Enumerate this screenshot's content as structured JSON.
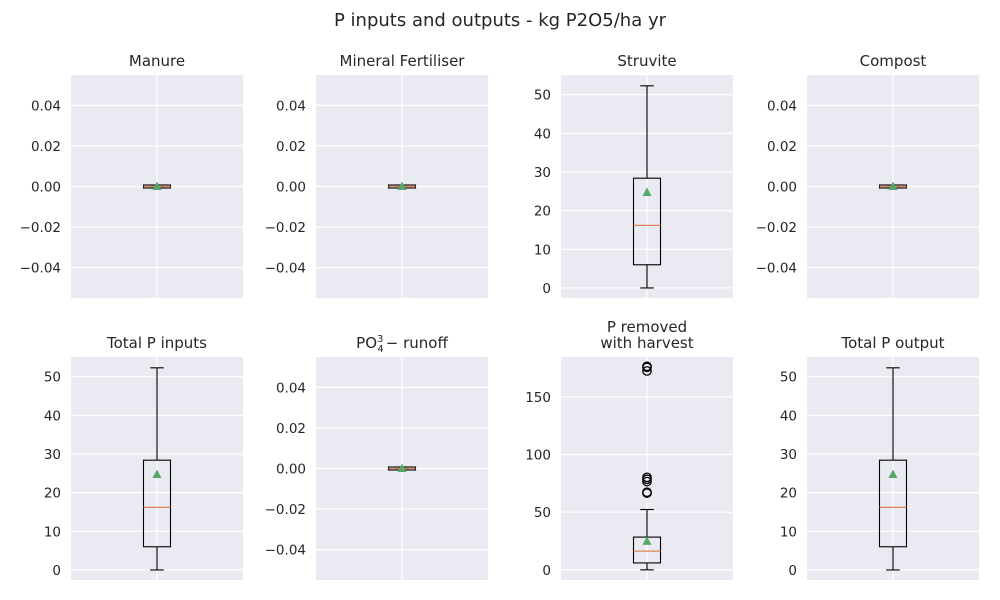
{
  "suptitle": "P inputs and outputs - kg P2O5/ha yr",
  "colors": {
    "axes_background": "#eaeaf2",
    "grid": "#ffffff",
    "box": "#000000",
    "median": "#dd8452",
    "mean_marker": "#55a868"
  },
  "chart_data": [
    {
      "type": "box",
      "title": "Manure",
      "ylim": [
        -0.055,
        0.055
      ],
      "yticks": [
        -0.04,
        -0.02,
        0.0,
        0.02,
        0.04
      ],
      "ytick_labels": [
        "−0.04",
        "−0.02",
        "0.00",
        "0.02",
        "0.04"
      ],
      "grid": true,
      "stats": {
        "whislo": 0,
        "q1": 0,
        "median": 0,
        "q3": 0,
        "whishi": 0,
        "mean": 0,
        "fliers": []
      }
    },
    {
      "type": "box",
      "title": "Mineral Fertiliser",
      "ylim": [
        -0.055,
        0.055
      ],
      "yticks": [
        -0.04,
        -0.02,
        0.0,
        0.02,
        0.04
      ],
      "ytick_labels": [
        "−0.04",
        "−0.02",
        "0.00",
        "0.02",
        "0.04"
      ],
      "grid": true,
      "stats": {
        "whislo": 0,
        "q1": 0,
        "median": 0,
        "q3": 0,
        "whishi": 0,
        "mean": 0,
        "fliers": []
      }
    },
    {
      "type": "box",
      "title": "Struvite",
      "ylim": [
        -2.6,
        55.1
      ],
      "yticks": [
        0,
        10,
        20,
        30,
        40,
        50
      ],
      "ytick_labels": [
        "0",
        "10",
        "20",
        "30",
        "40",
        "50"
      ],
      "grid": true,
      "stats": {
        "whislo": 0,
        "q1": 6,
        "median": 16.2,
        "q3": 28.4,
        "whishi": 52.3,
        "mean": 24.7,
        "fliers": []
      }
    },
    {
      "type": "box",
      "title": "Compost",
      "ylim": [
        -0.055,
        0.055
      ],
      "yticks": [
        -0.04,
        -0.02,
        0.0,
        0.02,
        0.04
      ],
      "ytick_labels": [
        "−0.04",
        "−0.02",
        "0.00",
        "0.02",
        "0.04"
      ],
      "grid": true,
      "stats": {
        "whislo": 0,
        "q1": 0,
        "median": 0,
        "q3": 0,
        "whishi": 0,
        "mean": 0,
        "fliers": []
      }
    },
    {
      "type": "box",
      "title": "Total P inputs",
      "ylim": [
        -2.6,
        55.1
      ],
      "yticks": [
        0,
        10,
        20,
        30,
        40,
        50
      ],
      "ytick_labels": [
        "0",
        "10",
        "20",
        "30",
        "40",
        "50"
      ],
      "grid": true,
      "stats": {
        "whislo": 0,
        "q1": 6,
        "median": 16.2,
        "q3": 28.4,
        "whishi": 52.3,
        "mean": 24.7,
        "fliers": []
      }
    },
    {
      "type": "box",
      "title": "PO",
      "title_sup": "3",
      "title_sub": "4",
      "title_rest": "−  runoff",
      "ylim": [
        -0.055,
        0.055
      ],
      "yticks": [
        -0.04,
        -0.02,
        0.0,
        0.02,
        0.04
      ],
      "ytick_labels": [
        "−0.04",
        "−0.02",
        "0.00",
        "0.02",
        "0.04"
      ],
      "grid": true,
      "stats": {
        "whislo": 0,
        "q1": 0,
        "median": 0,
        "q3": 0,
        "whishi": 0,
        "mean": 0,
        "fliers": []
      }
    },
    {
      "type": "box",
      "title": "P removed",
      "title_line2": "with harvest",
      "ylim": [
        -8.8,
        184.5
      ],
      "yticks": [
        0,
        50,
        100,
        150
      ],
      "ytick_labels": [
        "0",
        "50",
        "100",
        "150"
      ],
      "grid": true,
      "stats": {
        "whislo": 0,
        "q1": 6,
        "median": 16.2,
        "q3": 28.4,
        "whishi": 52.3,
        "mean": 24.7,
        "fliers": [
          66.5,
          67.3,
          76.5,
          78.5,
          80.2,
          172.4,
          175.5,
          176.4
        ]
      }
    },
    {
      "type": "box",
      "title": "Total P output",
      "ylim": [
        -2.6,
        55.1
      ],
      "yticks": [
        0,
        10,
        20,
        30,
        40,
        50
      ],
      "ytick_labels": [
        "0",
        "10",
        "20",
        "30",
        "40",
        "50"
      ],
      "grid": true,
      "stats": {
        "whislo": 0,
        "q1": 6,
        "median": 16.2,
        "q3": 28.4,
        "whishi": 52.3,
        "mean": 24.7,
        "fliers": []
      }
    }
  ]
}
